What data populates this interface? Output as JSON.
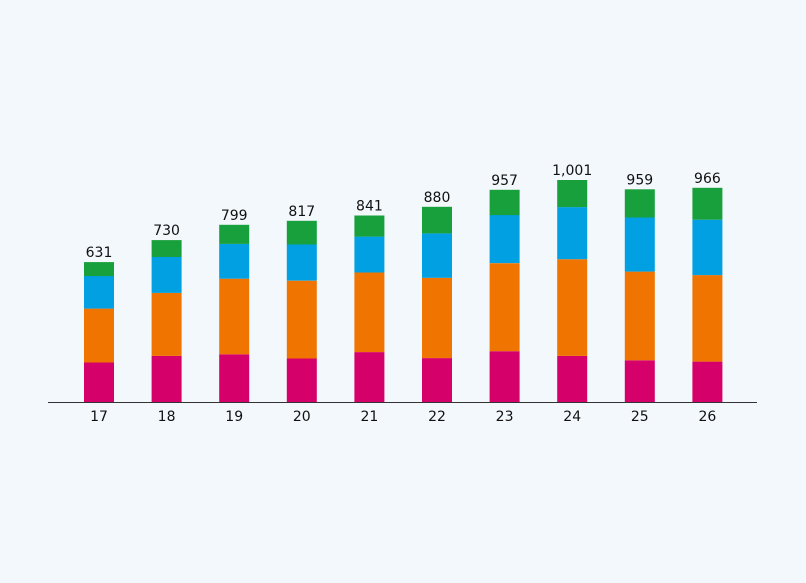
{
  "chart_data": {
    "type": "bar",
    "stacked": true,
    "categories": [
      "17",
      "18",
      "19",
      "20",
      "21",
      "22",
      "23",
      "24",
      "25",
      "26"
    ],
    "totals": [
      "631",
      "730",
      "799",
      "817",
      "841",
      "880",
      "957",
      "1,001",
      "959",
      "966"
    ],
    "series": [
      {
        "color": "#d6006b",
        "values": [
          178,
          208,
          215,
          196,
          225,
          198,
          229,
          208,
          188,
          182
        ]
      },
      {
        "color": "#ef7400",
        "values": [
          243,
          284,
          341,
          351,
          359,
          362,
          397,
          436,
          400,
          390
        ]
      },
      {
        "color": "#00a0e3",
        "values": [
          147,
          162,
          157,
          163,
          162,
          200,
          217,
          235,
          244,
          250
        ]
      },
      {
        "color": "#18a03c",
        "values": [
          63,
          76,
          86,
          107,
          95,
          120,
          114,
          122,
          127,
          144
        ]
      }
    ],
    "title": "",
    "xlabel": "",
    "ylabel": "",
    "ylim": [
      0,
      1001
    ],
    "grid": false,
    "legend": "none",
    "axis_color": "#333333",
    "background": "#f3f8fc"
  }
}
